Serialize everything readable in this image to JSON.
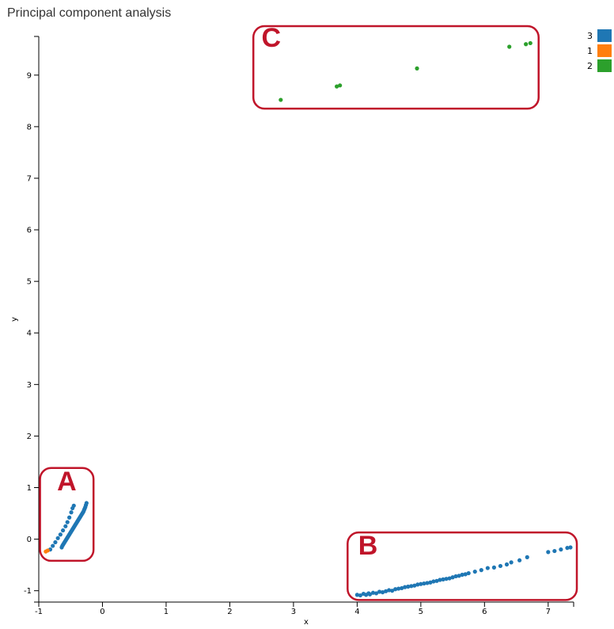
{
  "title": "Principal component analysis",
  "chart_data": {
    "type": "scatter",
    "title": "Principal component analysis",
    "xlabel": "x",
    "ylabel": "y",
    "xlim": [
      -1,
      7.4
    ],
    "ylim": [
      -1.22,
      9.75
    ],
    "x_ticks": [
      -1,
      0,
      1,
      2,
      3,
      4,
      5,
      6,
      7
    ],
    "y_ticks": [
      -1,
      0,
      1,
      2,
      3,
      4,
      5,
      6,
      7,
      8,
      9
    ],
    "grid": false,
    "legend_position": "top-right",
    "series": [
      {
        "name": "3",
        "color": "#1f77b4",
        "points": [
          [
            -0.82,
            -0.2
          ],
          [
            -0.78,
            -0.13
          ],
          [
            -0.74,
            -0.06
          ],
          [
            -0.7,
            0.02
          ],
          [
            -0.66,
            0.09
          ],
          [
            -0.62,
            0.17
          ],
          [
            -0.58,
            0.25
          ],
          [
            -0.55,
            0.33
          ],
          [
            -0.52,
            0.42
          ],
          [
            -0.49,
            0.52
          ],
          [
            -0.47,
            0.6
          ],
          [
            -0.45,
            0.65
          ],
          [
            -0.64,
            -0.16
          ],
          [
            -0.63,
            -0.13
          ],
          [
            -0.62,
            -0.11
          ],
          [
            -0.61,
            -0.09
          ],
          [
            -0.6,
            -0.07
          ],
          [
            -0.59,
            -0.05
          ],
          [
            -0.58,
            -0.03
          ],
          [
            -0.57,
            -0.01
          ],
          [
            -0.56,
            0.01
          ],
          [
            -0.55,
            0.03
          ],
          [
            -0.54,
            0.05
          ],
          [
            -0.53,
            0.07
          ],
          [
            -0.52,
            0.09
          ],
          [
            -0.51,
            0.11
          ],
          [
            -0.5,
            0.13
          ],
          [
            -0.49,
            0.15
          ],
          [
            -0.48,
            0.17
          ],
          [
            -0.47,
            0.19
          ],
          [
            -0.46,
            0.21
          ],
          [
            -0.45,
            0.23
          ],
          [
            -0.44,
            0.25
          ],
          [
            -0.43,
            0.27
          ],
          [
            -0.42,
            0.29
          ],
          [
            -0.41,
            0.31
          ],
          [
            -0.4,
            0.33
          ],
          [
            -0.39,
            0.35
          ],
          [
            -0.38,
            0.37
          ],
          [
            -0.37,
            0.39
          ],
          [
            -0.36,
            0.41
          ],
          [
            -0.35,
            0.43
          ],
          [
            -0.34,
            0.45
          ],
          [
            -0.33,
            0.47
          ],
          [
            -0.32,
            0.49
          ],
          [
            -0.31,
            0.51
          ],
          [
            -0.3,
            0.53
          ],
          [
            -0.29,
            0.56
          ],
          [
            -0.28,
            0.59
          ],
          [
            -0.27,
            0.62
          ],
          [
            -0.26,
            0.66
          ],
          [
            -0.25,
            0.7
          ],
          [
            4.0,
            -1.08
          ],
          [
            4.05,
            -1.09
          ],
          [
            4.1,
            -1.06
          ],
          [
            4.14,
            -1.08
          ],
          [
            4.18,
            -1.05
          ],
          [
            4.2,
            -1.07
          ],
          [
            4.25,
            -1.04
          ],
          [
            4.3,
            -1.05
          ],
          [
            4.35,
            -1.02
          ],
          [
            4.4,
            -1.03
          ],
          [
            4.45,
            -1.01
          ],
          [
            4.5,
            -0.99
          ],
          [
            4.55,
            -1.0
          ],
          [
            4.6,
            -0.97
          ],
          [
            4.65,
            -0.96
          ],
          [
            4.7,
            -0.95
          ],
          [
            4.75,
            -0.93
          ],
          [
            4.8,
            -0.92
          ],
          [
            4.85,
            -0.91
          ],
          [
            4.9,
            -0.9
          ],
          [
            4.95,
            -0.88
          ],
          [
            5.0,
            -0.87
          ],
          [
            5.05,
            -0.86
          ],
          [
            5.1,
            -0.85
          ],
          [
            5.15,
            -0.84
          ],
          [
            5.2,
            -0.82
          ],
          [
            5.25,
            -0.81
          ],
          [
            5.3,
            -0.79
          ],
          [
            5.35,
            -0.78
          ],
          [
            5.4,
            -0.77
          ],
          [
            5.45,
            -0.76
          ],
          [
            5.5,
            -0.74
          ],
          [
            5.55,
            -0.72
          ],
          [
            5.6,
            -0.71
          ],
          [
            5.65,
            -0.69
          ],
          [
            5.7,
            -0.68
          ],
          [
            5.75,
            -0.66
          ],
          [
            5.85,
            -0.63
          ],
          [
            5.95,
            -0.6
          ],
          [
            6.05,
            -0.56
          ],
          [
            6.15,
            -0.55
          ],
          [
            6.25,
            -0.52
          ],
          [
            6.35,
            -0.49
          ],
          [
            6.42,
            -0.45
          ],
          [
            6.55,
            -0.41
          ],
          [
            6.67,
            -0.35
          ],
          [
            7.0,
            -0.25
          ],
          [
            7.1,
            -0.23
          ],
          [
            7.2,
            -0.2
          ],
          [
            7.3,
            -0.17
          ],
          [
            7.35,
            -0.16
          ]
        ]
      },
      {
        "name": "1",
        "color": "#ff7f0e",
        "points": [
          [
            -0.89,
            -0.24
          ],
          [
            -0.86,
            -0.22
          ]
        ]
      },
      {
        "name": "2",
        "color": "#2ca02c",
        "points": [
          [
            2.8,
            8.52
          ],
          [
            3.68,
            8.78
          ],
          [
            3.73,
            8.8
          ],
          [
            4.94,
            9.13
          ],
          [
            6.39,
            9.55
          ],
          [
            6.65,
            9.6
          ],
          [
            6.72,
            9.62
          ]
        ]
      }
    ],
    "annotations": [
      "A",
      "B",
      "C"
    ]
  },
  "legend": [
    {
      "label": "3",
      "color": "#1f77b4"
    },
    {
      "label": "1",
      "color": "#ff7f0e"
    },
    {
      "label": "2",
      "color": "#2ca02c"
    }
  ],
  "annotation_color": "#c0152a"
}
